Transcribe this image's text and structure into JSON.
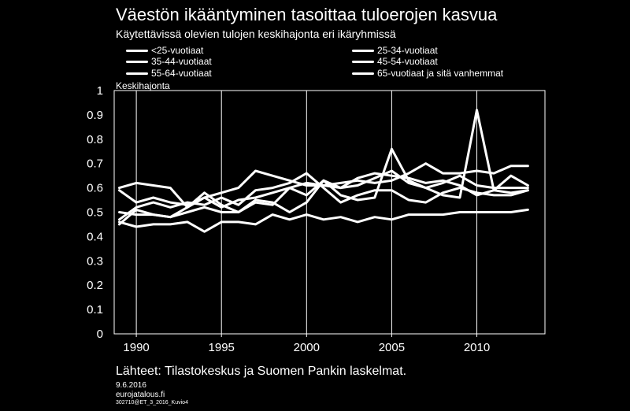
{
  "chart_data": {
    "type": "line",
    "title": "Väestön ikääntyminen tasoittaa tuloerojen kasvua",
    "subtitle": "Käytettävissä olevien tulojen keskihajonta eri ikäryhmissä",
    "ylabel": "Keskihajonta",
    "ylim": [
      0,
      1
    ],
    "yticks": [
      "0",
      "0.1",
      "0.2",
      "0.3",
      "0.4",
      "0.5",
      "0.6",
      "0.7",
      "0.8",
      "0.9",
      "1"
    ],
    "xlim": [
      1988.7,
      2014
    ],
    "xticks": [
      "1990",
      "1995",
      "2000",
      "2005",
      "2010"
    ],
    "grid": "on",
    "legend_position": "top",
    "line_color": "#ffffff",
    "x": [
      1989,
      1990,
      1991,
      1992,
      1993,
      1994,
      1995,
      1996,
      1997,
      1998,
      1999,
      2000,
      2001,
      2002,
      2003,
      2004,
      2005,
      2006,
      2007,
      2008,
      2009,
      2010,
      2011,
      2012,
      2013
    ],
    "series": [
      {
        "name": "<25-vuotiaat",
        "values": [
          0.45,
          0.51,
          0.49,
          0.48,
          0.52,
          0.58,
          0.53,
          0.5,
          0.55,
          0.54,
          0.5,
          0.54,
          0.63,
          0.57,
          0.55,
          0.56,
          0.76,
          0.63,
          0.6,
          0.57,
          0.56,
          0.92,
          0.59,
          0.65,
          0.61
        ]
      },
      {
        "name": "25-34-vuotiaat",
        "values": [
          0.59,
          0.54,
          0.56,
          0.54,
          0.53,
          0.56,
          0.58,
          0.6,
          0.67,
          0.65,
          0.63,
          0.61,
          0.61,
          0.62,
          0.63,
          0.62,
          0.63,
          0.66,
          0.7,
          0.66,
          0.66,
          0.67,
          0.66,
          0.69,
          0.69
        ]
      },
      {
        "name": "35-44-vuotiaat",
        "values": [
          0.6,
          0.62,
          0.61,
          0.6,
          0.52,
          0.56,
          0.52,
          0.55,
          0.56,
          0.58,
          0.6,
          0.62,
          0.61,
          0.6,
          0.61,
          0.64,
          0.67,
          0.62,
          0.6,
          0.62,
          0.65,
          0.61,
          0.6,
          0.6,
          0.6
        ]
      },
      {
        "name": "45-54-vuotiaat",
        "values": [
          0.5,
          0.49,
          0.49,
          0.48,
          0.5,
          0.52,
          0.5,
          0.5,
          0.54,
          0.53,
          0.6,
          0.57,
          0.63,
          0.6,
          0.64,
          0.66,
          0.65,
          0.64,
          0.62,
          0.63,
          0.61,
          0.57,
          0.59,
          0.58,
          0.59
        ]
      },
      {
        "name": "55-64-vuotiaat",
        "values": [
          0.47,
          0.52,
          0.54,
          0.52,
          0.54,
          0.53,
          0.56,
          0.53,
          0.59,
          0.6,
          0.62,
          0.66,
          0.6,
          0.54,
          0.57,
          0.59,
          0.59,
          0.55,
          0.54,
          0.58,
          0.6,
          0.58,
          0.57,
          0.57,
          0.59
        ]
      },
      {
        "name": "65-vuotiaat ja sitä vanhemmat",
        "values": [
          0.46,
          0.44,
          0.45,
          0.45,
          0.46,
          0.42,
          0.46,
          0.46,
          0.45,
          0.49,
          0.47,
          0.49,
          0.47,
          0.48,
          0.46,
          0.48,
          0.47,
          0.49,
          0.49,
          0.49,
          0.5,
          0.5,
          0.5,
          0.5,
          0.51
        ]
      }
    ]
  },
  "footer": {
    "source": "Lähteet: Tilastokeskus ja Suomen Pankin laskelmat.",
    "date": "9.6.2016",
    "site": "eurojatalous.fi",
    "code": "302710@ET_3_2016_Kuvio4"
  }
}
